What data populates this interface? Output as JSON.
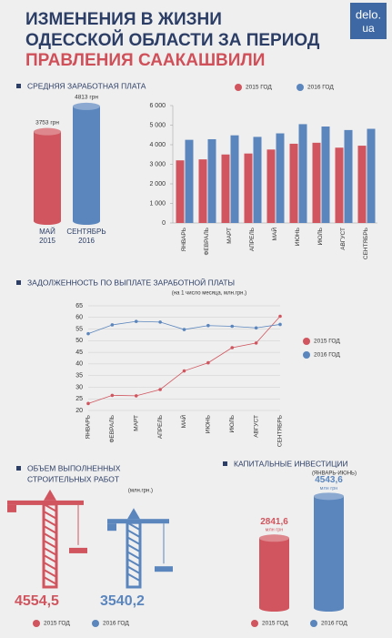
{
  "header": {
    "title": [
      "ИЗМЕНЕНИЯ В ЖИЗНИ",
      "ОДЕССКОЙ ОБЛАСТИ ЗА ПЕРИОД",
      "ПРАВЛЕНИЯ СААКАШВИЛИ"
    ],
    "logo": [
      "delo.",
      "ua"
    ]
  },
  "chart_data": [
    {
      "type": "cylinder",
      "title": "СРЕДНЯЯ ЗАРАБОТНАЯ ПЛАТА",
      "categories": [
        [
          "МАЙ",
          "2015"
        ],
        [
          "СЕНТЯБРЬ",
          "2016"
        ]
      ],
      "values": [
        3753,
        4813
      ],
      "value_labels": [
        "3753 грн",
        "4813 грн"
      ],
      "colors": [
        "#d0555e",
        "#5b86bd"
      ]
    },
    {
      "type": "bar",
      "categories": [
        "ЯНВАРЬ",
        "ФЕВРАЛЬ",
        "МАРТ",
        "АПРЕЛЬ",
        "МАЙ",
        "ИЮНЬ",
        "ИЮЛЬ",
        "АВГУСТ",
        "СЕНТЯБРЬ"
      ],
      "series": [
        {
          "name": "2015 ГОД",
          "color": "#d0555e",
          "values": [
            3200,
            3250,
            3500,
            3550,
            3753,
            4050,
            4100,
            3850,
            3950
          ]
        },
        {
          "name": "2016 ГОД",
          "color": "#5b86bd",
          "values": [
            4250,
            4280,
            4480,
            4400,
            4580,
            5050,
            4930,
            4750,
            4813
          ]
        }
      ],
      "ylim": [
        0,
        6000
      ],
      "yticks": [
        0,
        {
          "value": 1000,
          "label": "1 000"
        },
        {
          "value": 2000,
          "label": "2 000"
        },
        {
          "value": 3000,
          "label": "3 000"
        },
        {
          "value": 4000,
          "label": "4 000"
        },
        {
          "value": 5000,
          "label": "5 000"
        },
        {
          "value": 6000,
          "label": "6 000"
        }
      ]
    },
    {
      "type": "line",
      "title": "ЗАДОЛЖЕННОСТЬ ПО ВЫПЛАТЕ ЗАРАБОТНОЙ ПЛАТЫ",
      "subtitle": "(на 1 число месяца, млн.грн.)",
      "categories": [
        "ЯНВАРЬ",
        "ФЕВРАЛЬ",
        "МАРТ",
        "АПРЕЛЬ",
        "МАЙ",
        "ИЮНЬ",
        "ИЮЛЬ",
        "АВГУСТ",
        "СЕНТЯБРЬ"
      ],
      "series": [
        {
          "name": "2015 ГОД",
          "color": "#d0555e",
          "values": [
            23,
            26.5,
            26.3,
            29,
            37,
            40.5,
            47,
            49,
            60.5
          ]
        },
        {
          "name": "2016 ГОД",
          "color": "#5b86bd",
          "values": [
            53,
            56.8,
            58.3,
            58,
            54.8,
            56.5,
            56.2,
            55.5,
            57
          ]
        }
      ],
      "ylim": [
        20,
        65
      ],
      "yticks": [
        20,
        25,
        30,
        35,
        40,
        45,
        50,
        55,
        60,
        65
      ],
      "grid": true
    },
    {
      "type": "crane",
      "title": [
        "ОБЪЕМ ВЫПОЛНЕННЫХ",
        "СТРОИТЕЛЬНЫХ РАБОТ"
      ],
      "subtitle": "(млн.грн.)",
      "series": [
        {
          "name": "2015 ГОД",
          "color": "#d0555e",
          "values": [
            4554.5
          ],
          "value_labels": [
            "4554,5"
          ]
        },
        {
          "name": "2016 ГОД",
          "color": "#5b86bd",
          "values": [
            3540.2
          ],
          "value_labels": [
            "3540,2"
          ]
        }
      ]
    },
    {
      "type": "cylinder",
      "title": "КАПИТАЛЬНЫЕ ИНВЕСТИЦИИ",
      "subtitle": "(ЯНВАРЬ-ИЮНЬ)",
      "unit": "млн грн",
      "series": [
        {
          "name": "2015 ГОД",
          "color": "#d0555e",
          "values": [
            2841.6
          ],
          "value_labels": [
            "2841,6"
          ]
        },
        {
          "name": "2016 ГОД",
          "color": "#5b86bd",
          "values": [
            4543.6
          ],
          "value_labels": [
            "4543,6"
          ]
        }
      ]
    }
  ]
}
